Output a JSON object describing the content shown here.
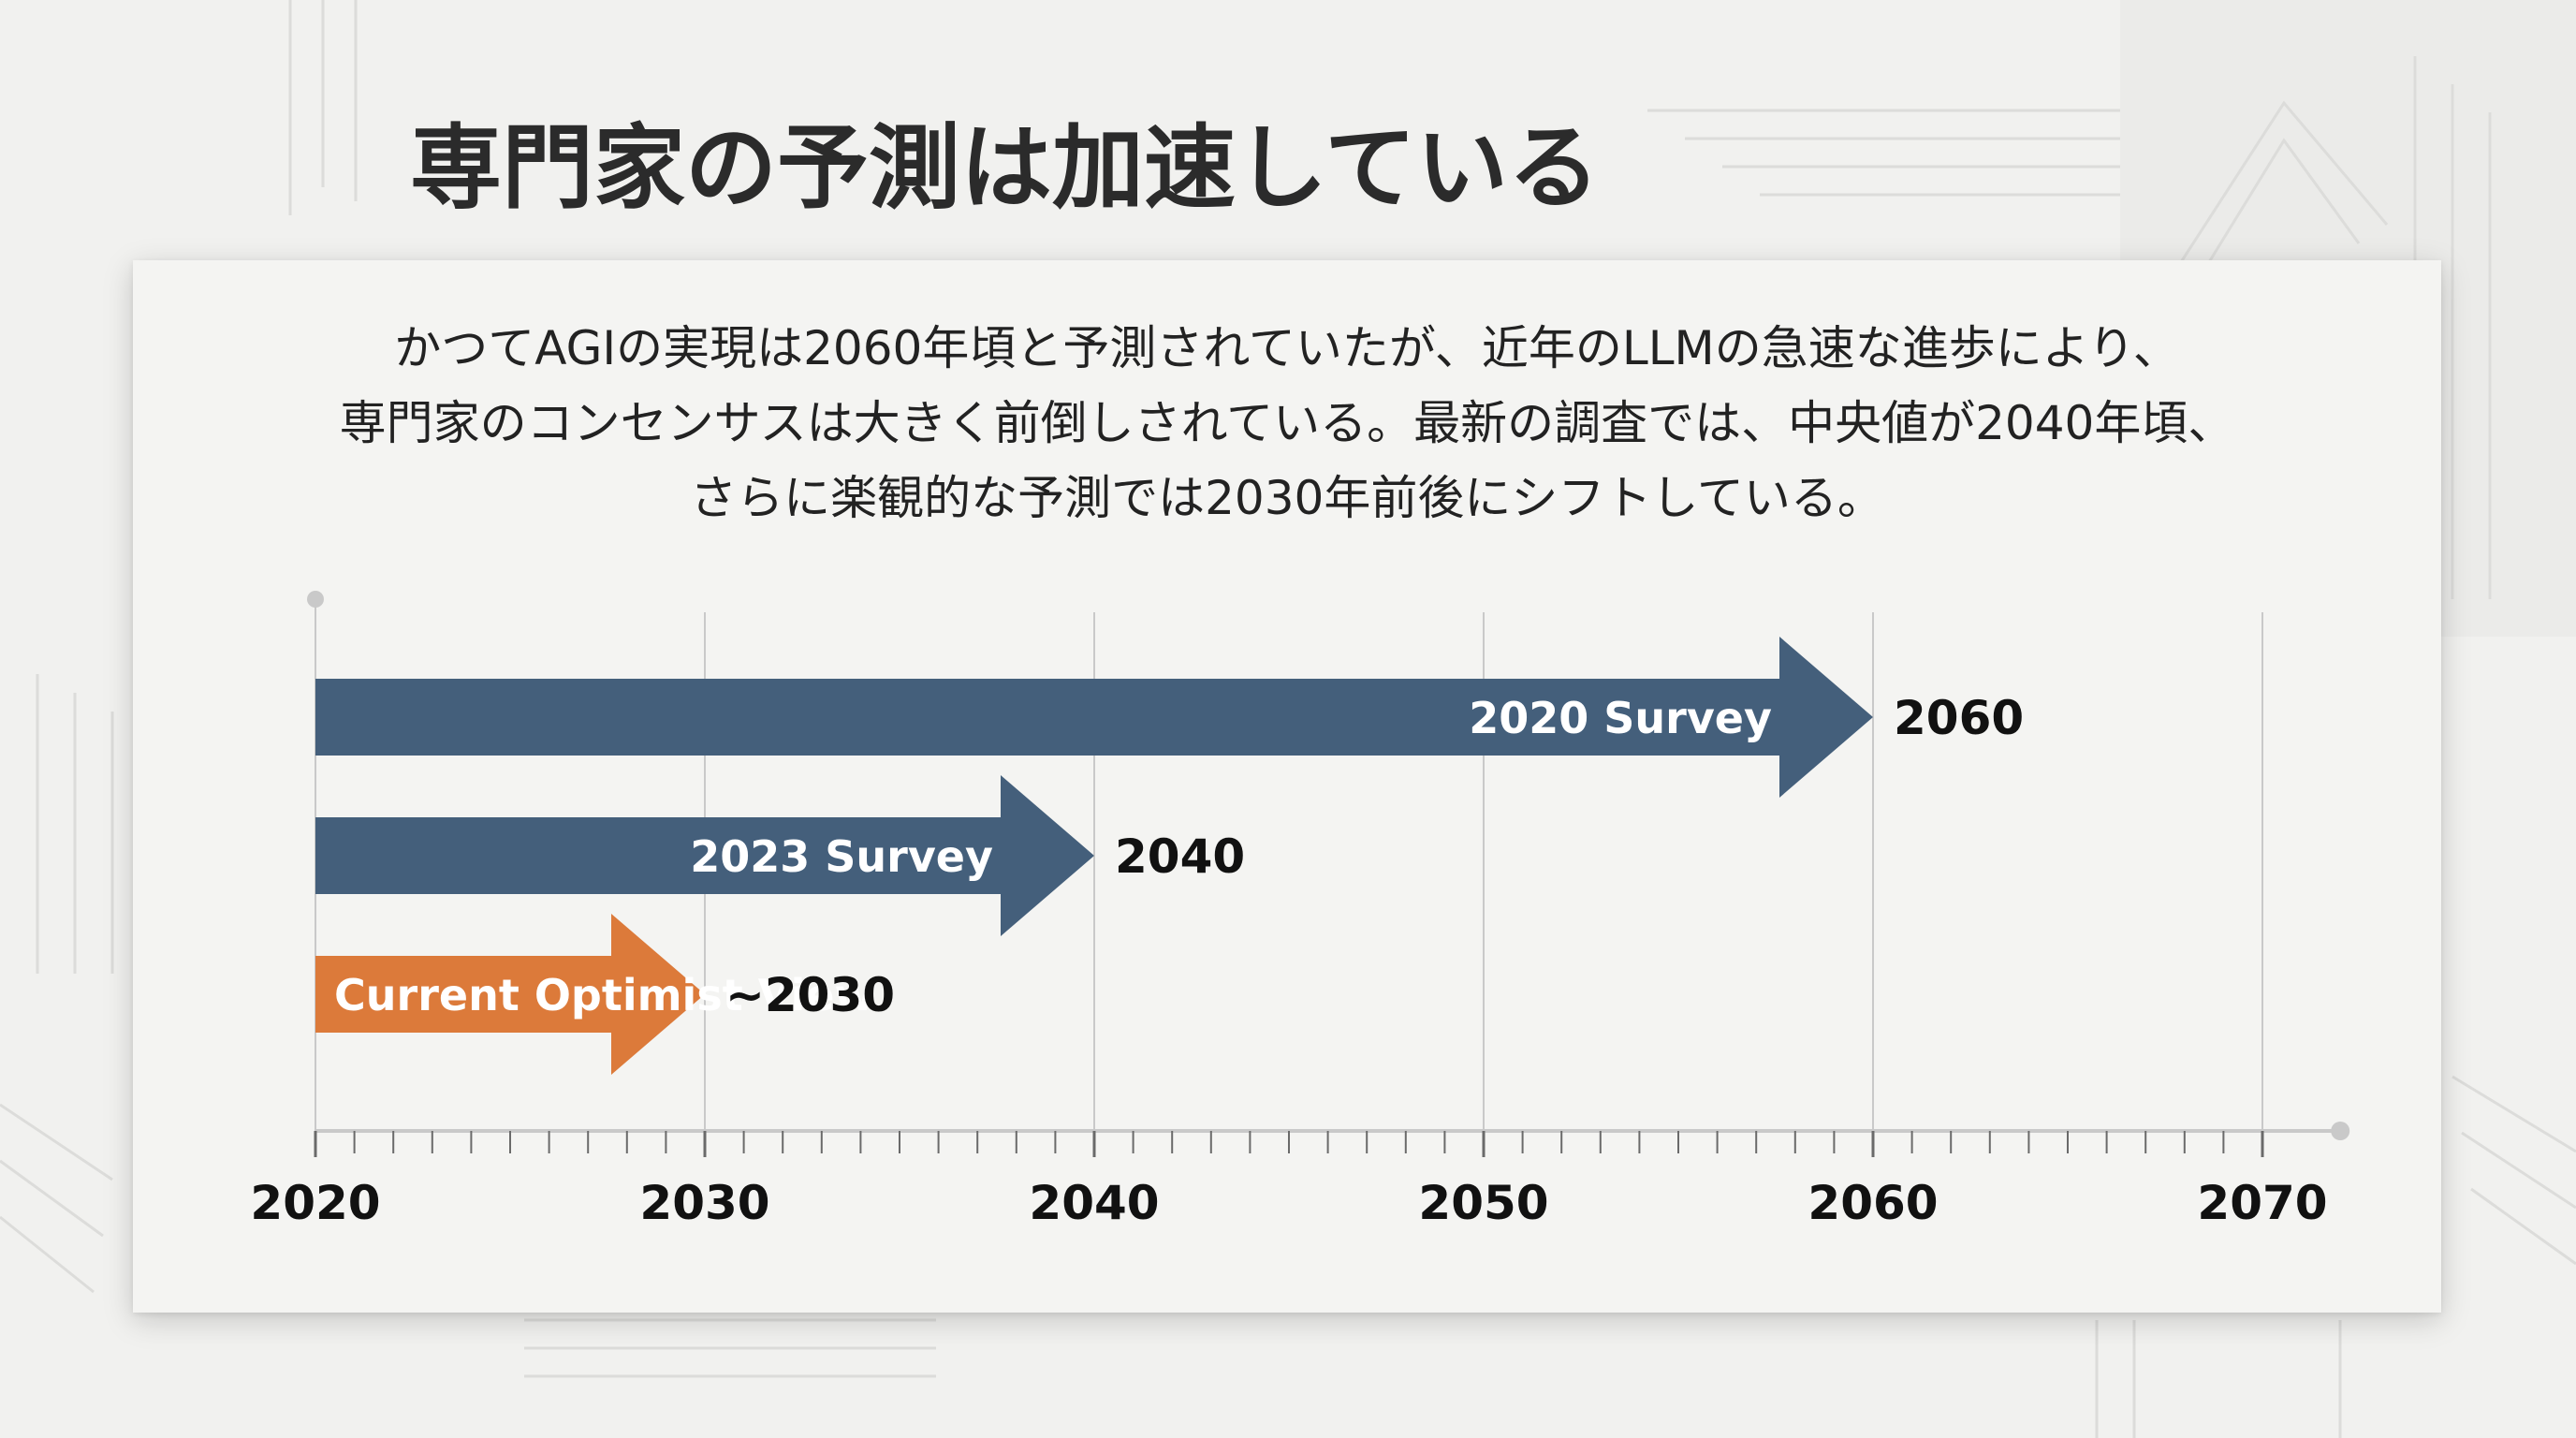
{
  "title": "専門家の予測は加速している",
  "description": [
    "かつてAGIの実現は2060年頃と予測されていたが、近年のLLMの急速な進歩により、",
    "専門家のコンセンサスは大きく前倒しされている。最新の調査では、中央値が2040年頃、",
    "さらに楽観的な予測では2030年前後にシフトしている。"
  ],
  "colors": {
    "survey": "#445f7b",
    "optimist": "#dc7a3a",
    "axis": "#c9c9c9",
    "text": "#222222"
  },
  "chart_data": {
    "type": "bar",
    "orientation": "horizontal",
    "x_axis_ticks": [
      "2020",
      "2030",
      "2040",
      "2050",
      "2060",
      "2070"
    ],
    "xlim": [
      2020,
      2072
    ],
    "start_year": 2020,
    "bars": [
      {
        "label": "2020 Survey",
        "value": 2060,
        "value_label": "2060",
        "color": "#445f7b"
      },
      {
        "label": "2023 Survey",
        "value": 2040,
        "value_label": "2040",
        "color": "#445f7b"
      },
      {
        "label": "Current Optimist View",
        "value": 2030,
        "value_label": "~2030",
        "color": "#dc7a3a"
      }
    ],
    "grid": true
  }
}
